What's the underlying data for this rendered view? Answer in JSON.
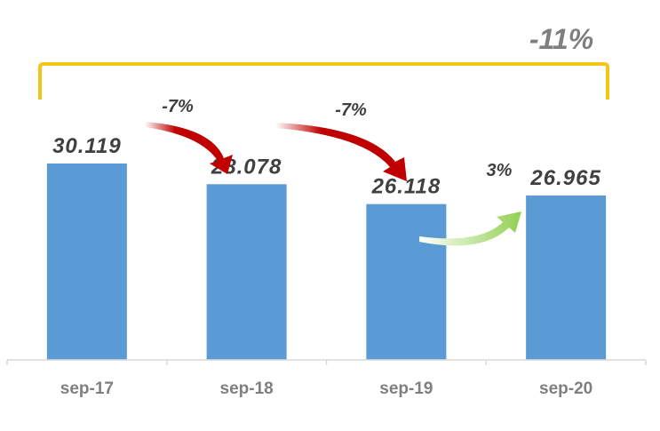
{
  "chart_data": {
    "type": "bar",
    "categories": [
      "sep-17",
      "sep-18",
      "sep-19",
      "sep-20"
    ],
    "values": [
      30119,
      28078,
      26118,
      26965
    ],
    "value_labels": [
      "30.119",
      "28.078",
      "26.118",
      "26.965"
    ],
    "ylim": [
      0,
      34000
    ],
    "grid": false,
    "annotations": {
      "changes": [
        {
          "from": "sep-17",
          "to": "sep-18",
          "label": "-7%",
          "direction": "down",
          "color": "#c00000"
        },
        {
          "from": "sep-18",
          "to": "sep-19",
          "label": "-7%",
          "direction": "down",
          "color": "#c00000"
        },
        {
          "from": "sep-19",
          "to": "sep-20",
          "label": "3%",
          "direction": "up",
          "color": "#92d050"
        }
      ],
      "total_change": {
        "label": "-11%",
        "bracket_color": "#f5c518"
      }
    },
    "colors": {
      "bar": "#5b9bd5",
      "axis": "#d9d9d9"
    }
  }
}
